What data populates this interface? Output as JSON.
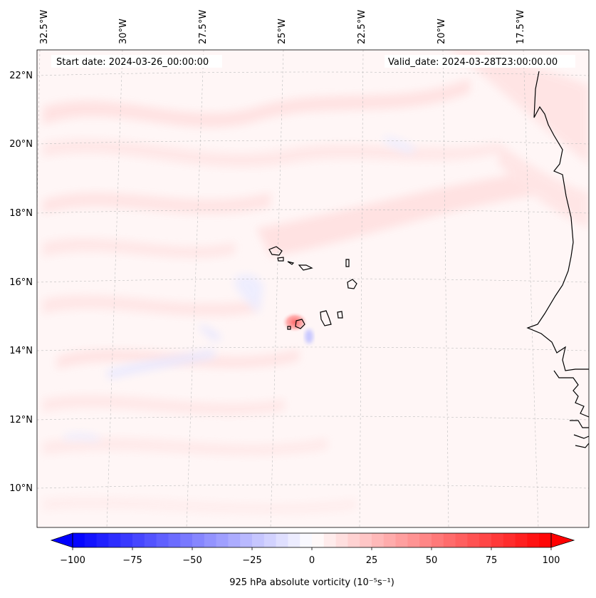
{
  "map": {
    "start_date_label": "Start date: 2024-03-26_00:00:00",
    "valid_date_label": "Valid_date: 2024-03-28T23:00:00.00",
    "variable": "925 hPa absolute vorticity",
    "units": "(10⁻⁵s⁻¹)",
    "lon_labels": [
      "32.5°W",
      "30°W",
      "27.5°W",
      "25°W",
      "22.5°W",
      "20°W",
      "17.5°W"
    ],
    "lat_labels": [
      "22°N",
      "20°N",
      "18°N",
      "16°N",
      "14°N",
      "12°N",
      "10°N"
    ],
    "extent": {
      "lon_min": -32.7,
      "lon_max": -15.1,
      "lat_min": 8.9,
      "lat_max": 22.7
    },
    "features": [
      "Cape Verde islands",
      "West African coastline"
    ]
  },
  "colorbar": {
    "ticks": [
      "−100",
      "−75",
      "−50",
      "−25",
      "0",
      "25",
      "50",
      "75",
      "100"
    ],
    "min": -100,
    "max": 100,
    "n_bins": 40,
    "colormap": "bwr",
    "label": "925 hPa absolute vorticity (10⁻⁵s⁻¹)"
  },
  "colors": {
    "negative": "#0000ff",
    "neutral": "#ffffff",
    "positive": "#ff0000",
    "coast": "#000000"
  }
}
